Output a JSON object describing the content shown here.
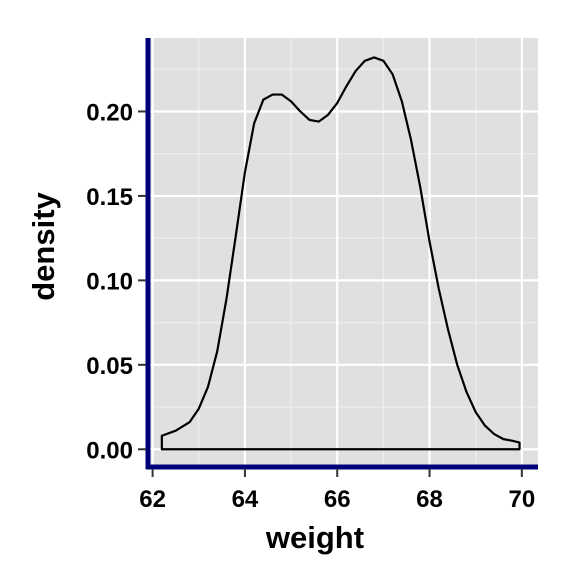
{
  "chart_data": {
    "type": "area",
    "title": "",
    "xlabel": "weight",
    "ylabel": "density",
    "xlim": [
      61.9,
      70.35
    ],
    "ylim": [
      -0.0105,
      0.2435
    ],
    "x_ticks": [
      62,
      64,
      66,
      68,
      70
    ],
    "x_tick_labels": [
      "62",
      "64",
      "66",
      "68",
      "70"
    ],
    "y_ticks": [
      0.0,
      0.05,
      0.1,
      0.15,
      0.2
    ],
    "y_tick_labels": [
      "0.00",
      "0.05",
      "0.10",
      "0.15",
      "0.20"
    ],
    "x_minor_ticks": [
      63,
      65,
      67,
      69
    ],
    "y_minor_ticks": [
      0.025,
      0.075,
      0.125,
      0.175,
      0.225
    ],
    "grid": true,
    "legend": "none",
    "series": [
      {
        "x": [
          62.2,
          62.5,
          62.8,
          63.0,
          63.2,
          63.4,
          63.6,
          63.8,
          64.0,
          64.2,
          64.4,
          64.6,
          64.8,
          65.0,
          65.2,
          65.4,
          65.6,
          65.8,
          66.0,
          66.2,
          66.4,
          66.6,
          66.8,
          67.0,
          67.2,
          67.4,
          67.6,
          67.8,
          68.0,
          68.2,
          68.4,
          68.6,
          68.8,
          69.0,
          69.2,
          69.4,
          69.6,
          69.8,
          69.95
        ],
        "y": [
          0.008,
          0.011,
          0.016,
          0.024,
          0.037,
          0.058,
          0.089,
          0.126,
          0.164,
          0.193,
          0.207,
          0.21,
          0.21,
          0.206,
          0.2,
          0.195,
          0.194,
          0.198,
          0.205,
          0.215,
          0.224,
          0.23,
          0.232,
          0.23,
          0.222,
          0.206,
          0.183,
          0.155,
          0.123,
          0.095,
          0.071,
          0.05,
          0.034,
          0.022,
          0.014,
          0.009,
          0.006,
          0.005,
          0.004
        ]
      }
    ]
  },
  "colors": {
    "panel_background": "#e0e0e0",
    "grid_major": "#ffffff",
    "grid_minor": "#eeeeee",
    "axis_line": "#00007b",
    "curve": "#000000",
    "fill": "none"
  }
}
